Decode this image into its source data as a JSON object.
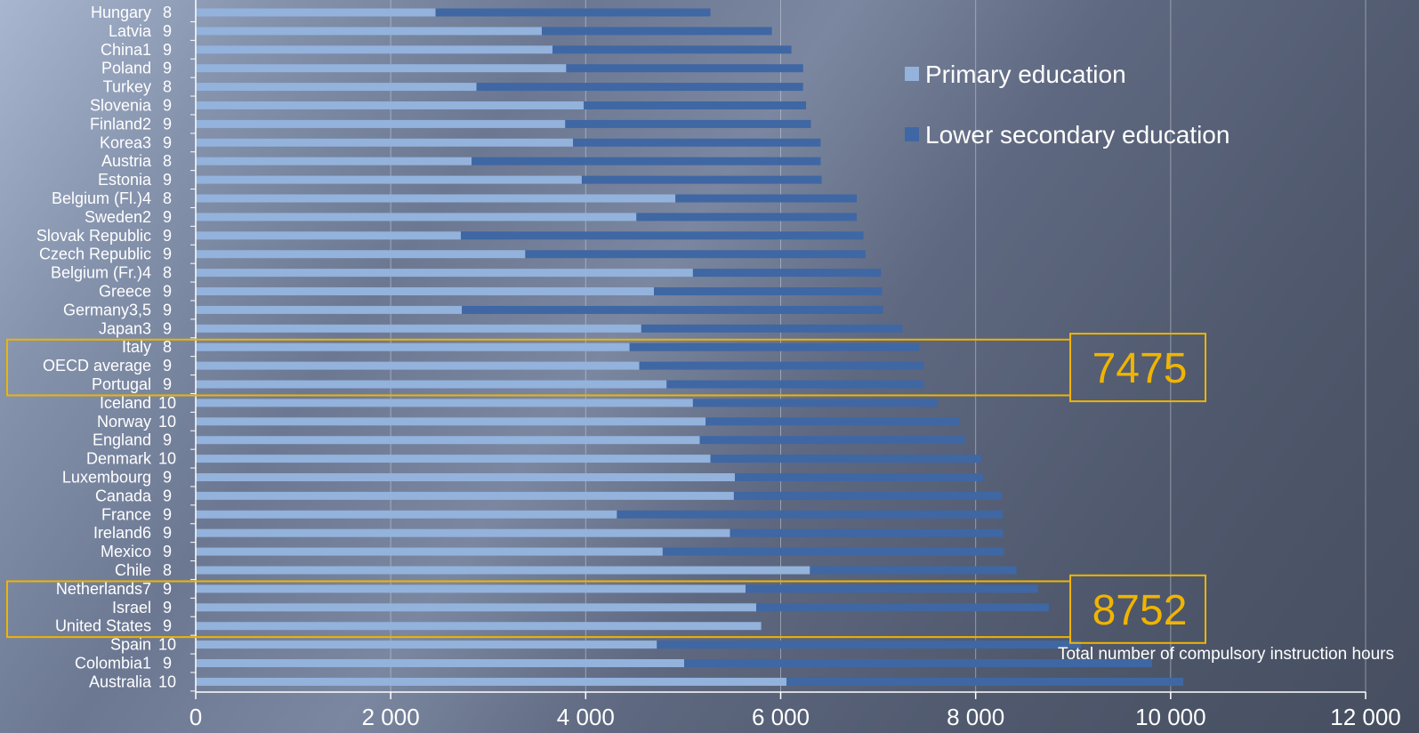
{
  "chart_data": {
    "type": "bar",
    "orientation": "horizontal",
    "stacked": true,
    "categories": [
      {
        "country": "Hungary",
        "years": "8"
      },
      {
        "country": "Latvia",
        "years": "9"
      },
      {
        "country": "China1",
        "years": "9"
      },
      {
        "country": "Poland",
        "years": "9"
      },
      {
        "country": "Turkey",
        "years": "8"
      },
      {
        "country": "Slovenia",
        "years": "9"
      },
      {
        "country": "Finland2",
        "years": "9"
      },
      {
        "country": "Korea3",
        "years": "9"
      },
      {
        "country": "Austria",
        "years": "8"
      },
      {
        "country": "Estonia",
        "years": "9"
      },
      {
        "country": "Belgium (Fl.)4",
        "years": "8"
      },
      {
        "country": "Sweden2",
        "years": "9"
      },
      {
        "country": "Slovak Republic",
        "years": "9"
      },
      {
        "country": "Czech Republic",
        "years": "9"
      },
      {
        "country": "Belgium (Fr.)4",
        "years": "8"
      },
      {
        "country": "Greece",
        "years": "9"
      },
      {
        "country": "Germany3,5",
        "years": "9"
      },
      {
        "country": "Japan3",
        "years": "9"
      },
      {
        "country": "Italy",
        "years": "8"
      },
      {
        "country": "OECD average",
        "years": "9"
      },
      {
        "country": "Portugal",
        "years": "9"
      },
      {
        "country": "Iceland",
        "years": "10"
      },
      {
        "country": "Norway",
        "years": "10"
      },
      {
        "country": "England",
        "years": "9"
      },
      {
        "country": "Denmark",
        "years": "10"
      },
      {
        "country": "Luxembourg",
        "years": "9"
      },
      {
        "country": "Canada",
        "years": "9"
      },
      {
        "country": "France",
        "years": "9"
      },
      {
        "country": "Ireland6",
        "years": "9"
      },
      {
        "country": "Mexico",
        "years": "9"
      },
      {
        "country": "Chile",
        "years": "8"
      },
      {
        "country": "Netherlands7",
        "years": "9"
      },
      {
        "country": "Israel",
        "years": "9"
      },
      {
        "country": "United States",
        "years": "9"
      },
      {
        "country": "Spain",
        "years": "10"
      },
      {
        "country": "Colombia1",
        "years": "9"
      },
      {
        "country": "Australia",
        "years": "10"
      }
    ],
    "series": [
      {
        "name": "Primary education",
        "color": "#93b2dc",
        "values": [
          2460,
          3550,
          3660,
          3800,
          2880,
          3980,
          3790,
          3870,
          2830,
          3960,
          4920,
          4520,
          2720,
          3380,
          5100,
          4700,
          2730,
          4570,
          4450,
          4550,
          4830,
          5100,
          5230,
          5170,
          5280,
          5530,
          5520,
          4320,
          5480,
          4790,
          6300,
          5640,
          5750,
          5800,
          4730,
          5010,
          6060
        ]
      },
      {
        "name": "Lower secondary education",
        "color": "#3f67a3",
        "values": [
          2820,
          2360,
          2450,
          2430,
          3350,
          2280,
          2520,
          2540,
          3580,
          2460,
          1860,
          2260,
          4130,
          3490,
          1930,
          2340,
          4320,
          2680,
          2970,
          2920,
          2640,
          2510,
          2600,
          2720,
          2780,
          2550,
          2750,
          3960,
          2800,
          3500,
          2120,
          3000,
          3000,
          0,
          4350,
          4800,
          4070
        ]
      }
    ],
    "xlim": [
      0,
      12000
    ],
    "xticks": [
      "0",
      "2 000",
      "4 000",
      "6 000",
      "8 000",
      "10 000",
      "12 000"
    ],
    "xlabel": "Total number of compulsory instruction hours",
    "legend_position": "top-right",
    "grid": true,
    "highlights": [
      {
        "label": "7475",
        "rows": [
          "Italy",
          "OECD average",
          "Portugal"
        ],
        "color": "#f0b400"
      },
      {
        "label": "8752",
        "rows": [
          "Netherlands7",
          "Israel",
          "United States"
        ],
        "color": "#f0b400"
      }
    ]
  }
}
